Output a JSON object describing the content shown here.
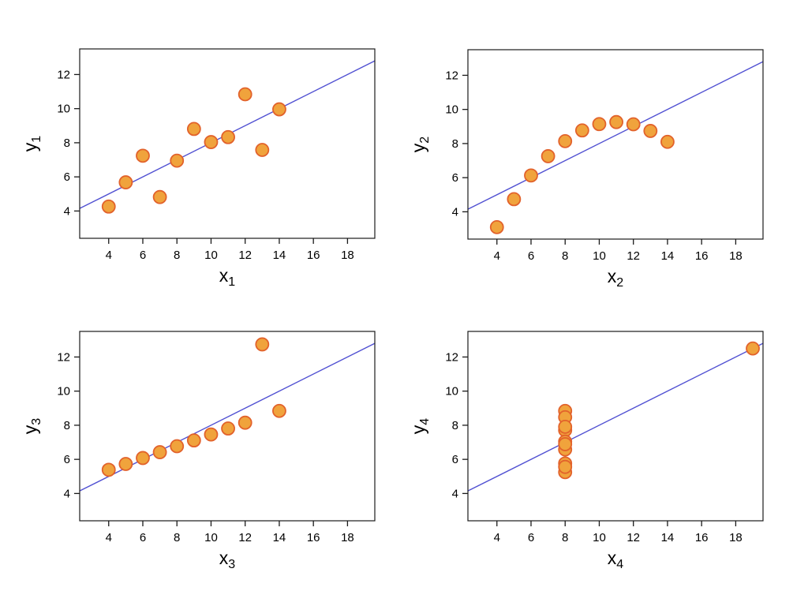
{
  "style": {
    "background": "#ffffff",
    "marker_fill": "#F0A33C",
    "marker_stroke": "#E2622B",
    "line_color": "#5050D2",
    "axis_color": "#1a1a1a",
    "text_color": "#000000"
  },
  "chart_data": [
    {
      "type": "scatter",
      "panel": "top-left",
      "xlabel_base": "x",
      "xlabel_sub": "1",
      "ylabel_base": "y",
      "ylabel_sub": "1",
      "x": [
        10,
        8,
        13,
        9,
        11,
        14,
        6,
        4,
        12,
        7,
        5
      ],
      "y": [
        8.04,
        6.95,
        7.58,
        8.81,
        8.33,
        9.96,
        7.24,
        4.26,
        10.84,
        4.82,
        5.68
      ],
      "xlim": [
        2.3,
        19.6
      ],
      "ylim": [
        2.4,
        13.5
      ],
      "xticks": [
        4,
        6,
        8,
        10,
        12,
        14,
        16,
        18
      ],
      "yticks": [
        4,
        6,
        8,
        10,
        12
      ],
      "regression_line": {
        "intercept": 3,
        "slope": 0.5
      },
      "grid": false,
      "legend": false
    },
    {
      "type": "scatter",
      "panel": "top-right",
      "xlabel_base": "x",
      "xlabel_sub": "2",
      "ylabel_base": "y",
      "ylabel_sub": "2",
      "x": [
        10,
        8,
        13,
        9,
        11,
        14,
        6,
        4,
        12,
        7,
        5
      ],
      "y": [
        9.14,
        8.14,
        8.74,
        8.77,
        9.26,
        8.1,
        6.13,
        3.1,
        9.13,
        7.26,
        4.74
      ],
      "xlim": [
        2.3,
        19.6
      ],
      "ylim": [
        2.4,
        13.5
      ],
      "xticks": [
        4,
        6,
        8,
        10,
        12,
        14,
        16,
        18
      ],
      "yticks": [
        4,
        6,
        8,
        10,
        12
      ],
      "regression_line": {
        "intercept": 3,
        "slope": 0.5
      },
      "grid": false,
      "legend": false
    },
    {
      "type": "scatter",
      "panel": "bottom-left",
      "xlabel_base": "x",
      "xlabel_sub": "3",
      "ylabel_base": "y",
      "ylabel_sub": "3",
      "x": [
        10,
        8,
        13,
        9,
        11,
        14,
        6,
        4,
        12,
        7,
        5
      ],
      "y": [
        7.46,
        6.77,
        12.74,
        7.11,
        7.81,
        8.84,
        6.08,
        5.39,
        8.15,
        6.42,
        5.73
      ],
      "xlim": [
        2.3,
        19.6
      ],
      "ylim": [
        2.4,
        13.5
      ],
      "xticks": [
        4,
        6,
        8,
        10,
        12,
        14,
        16,
        18
      ],
      "yticks": [
        4,
        6,
        8,
        10,
        12
      ],
      "regression_line": {
        "intercept": 3,
        "slope": 0.5
      },
      "grid": false,
      "legend": false
    },
    {
      "type": "scatter",
      "panel": "bottom-right",
      "xlabel_base": "x",
      "xlabel_sub": "4",
      "ylabel_base": "y",
      "ylabel_sub": "4",
      "x": [
        8,
        8,
        8,
        8,
        8,
        8,
        8,
        19,
        8,
        8,
        8
      ],
      "y": [
        6.58,
        5.76,
        7.71,
        8.84,
        8.47,
        7.04,
        5.25,
        12.5,
        5.56,
        7.91,
        6.89
      ],
      "xlim": [
        2.3,
        19.6
      ],
      "ylim": [
        2.4,
        13.5
      ],
      "xticks": [
        4,
        6,
        8,
        10,
        12,
        14,
        16,
        18
      ],
      "yticks": [
        4,
        6,
        8,
        10,
        12
      ],
      "regression_line": {
        "intercept": 3,
        "slope": 0.5
      },
      "grid": false,
      "legend": false
    }
  ]
}
